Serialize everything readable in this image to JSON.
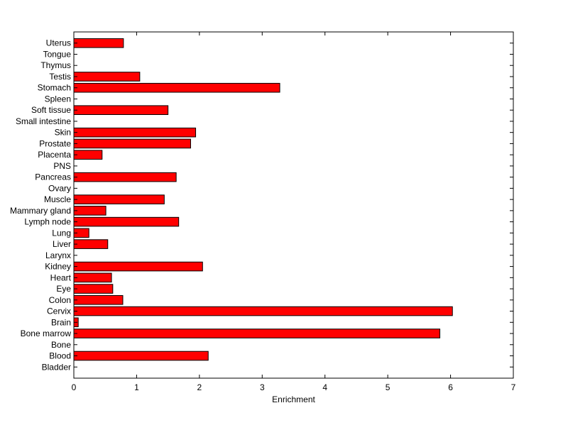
{
  "chart_data": {
    "type": "bar",
    "orientation": "horizontal",
    "title": "",
    "xlabel": "Enrichment",
    "ylabel": "",
    "xlim": [
      0,
      7
    ],
    "xticks": [
      0,
      1,
      2,
      3,
      4,
      5,
      6,
      7
    ],
    "grid": false,
    "bar_color": "#ff0000",
    "bar_edge_color": "#000000",
    "categories": [
      "Bladder",
      "Blood",
      "Bone",
      "Bone marrow",
      "Brain",
      "Cervix",
      "Colon",
      "Eye",
      "Heart",
      "Kidney",
      "Larynx",
      "Liver",
      "Lung",
      "Lymph node",
      "Mammary gland",
      "Muscle",
      "Ovary",
      "Pancreas",
      "PNS",
      "Placenta",
      "Prostate",
      "Skin",
      "Small intestine",
      "Soft tissue",
      "Spleen",
      "Stomach",
      "Testis",
      "Thymus",
      "Tongue",
      "Uterus"
    ],
    "values": [
      0,
      2.14,
      0,
      5.83,
      0.07,
      6.03,
      0.78,
      0.62,
      0.6,
      2.05,
      0,
      0.54,
      0.24,
      1.67,
      0.51,
      1.44,
      0,
      1.63,
      0,
      0.45,
      1.86,
      1.94,
      0,
      1.5,
      0,
      3.28,
      1.05,
      0,
      0,
      0.79
    ]
  }
}
